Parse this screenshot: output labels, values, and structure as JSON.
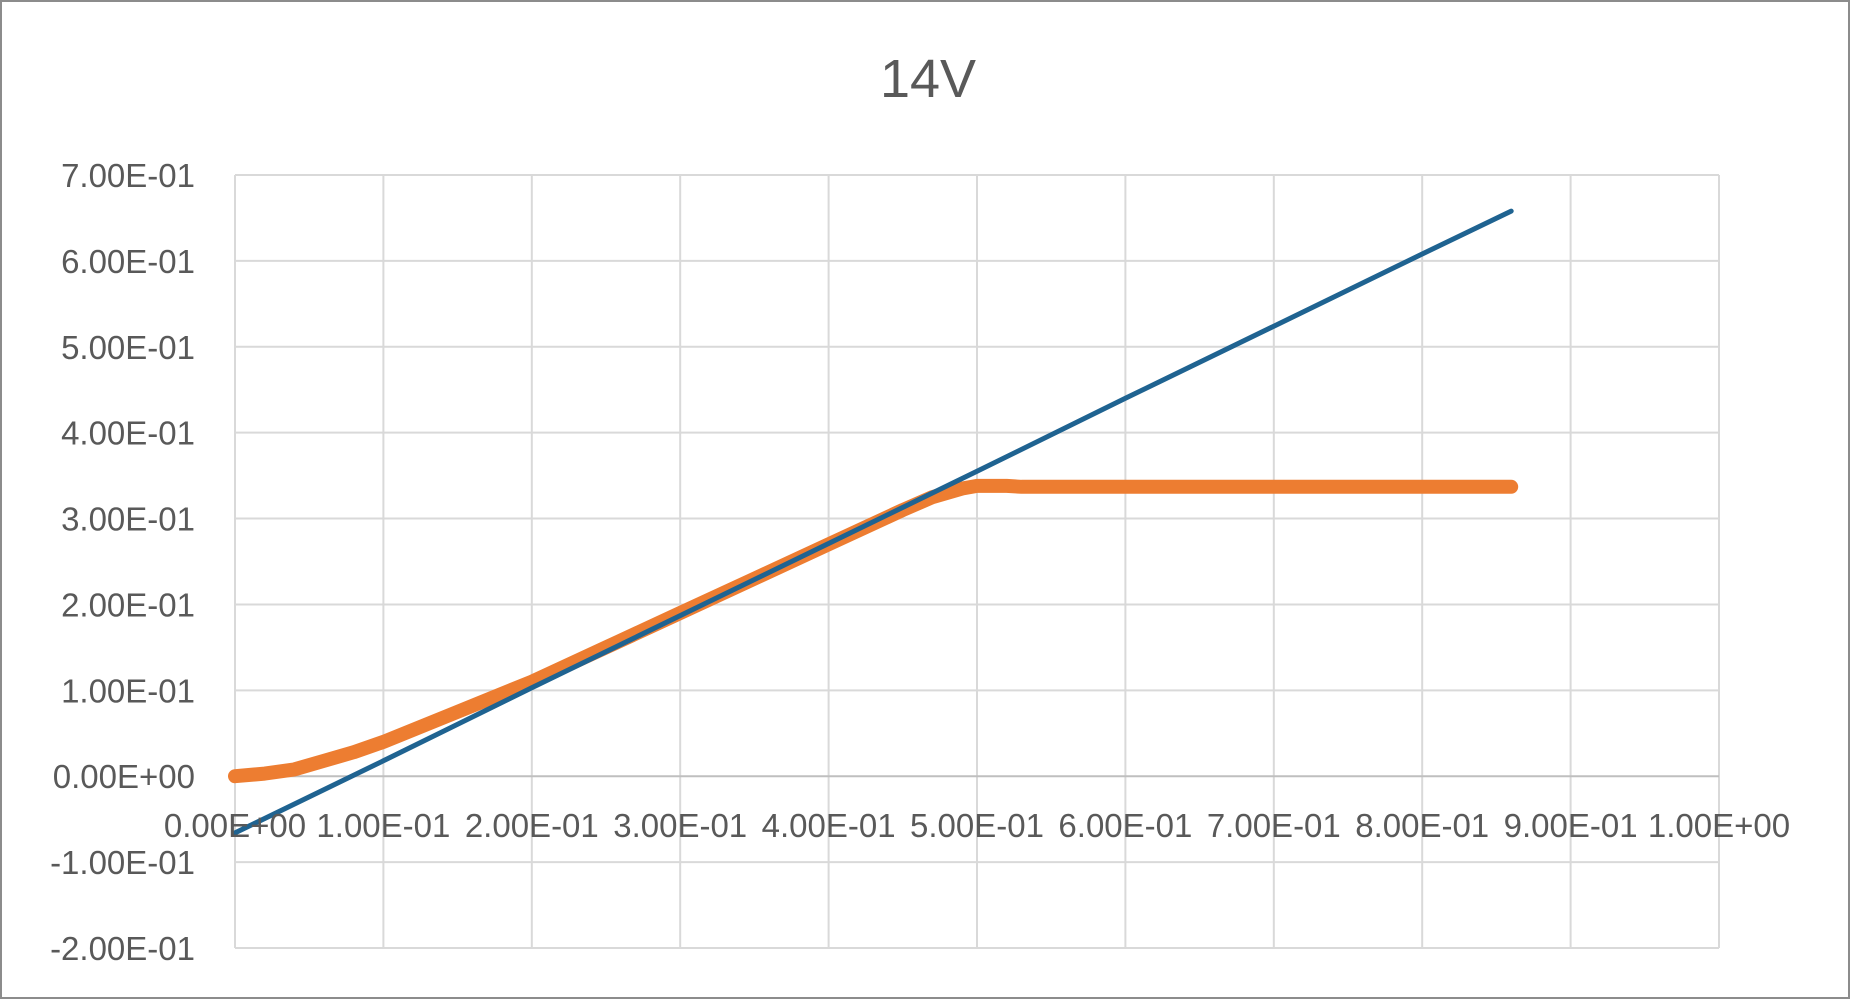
{
  "chart_data": {
    "type": "line",
    "title": "14V",
    "xlabel": "",
    "ylabel": "",
    "xlim": [
      0,
      1.0
    ],
    "ylim": [
      -0.2,
      0.7
    ],
    "x_ticks": [
      0,
      0.1,
      0.2,
      0.3,
      0.4,
      0.5,
      0.6,
      0.7,
      0.8,
      0.9,
      1.0
    ],
    "x_tick_labels": [
      "0.00E+00",
      "1.00E-01",
      "2.00E-01",
      "3.00E-01",
      "4.00E-01",
      "5.00E-01",
      "6.00E-01",
      "7.00E-01",
      "8.00E-01",
      "9.00E-01",
      "1.00E+00"
    ],
    "y_ticks": [
      0.7,
      0.6,
      0.5,
      0.4,
      0.3,
      0.2,
      0.1,
      0.0,
      -0.1,
      -0.2
    ],
    "y_tick_labels": [
      "7.00E-01",
      "6.00E-01",
      "5.00E-01",
      "4.00E-01",
      "3.00E-01",
      "2.00E-01",
      "1.00E-01",
      "0.00E+00",
      "-1.00E-01",
      "-2.00E-01"
    ],
    "grid": true,
    "legend": "none",
    "series": [
      {
        "color": "#1f6391",
        "x": [
          0,
          0.1,
          0.2,
          0.3,
          0.4,
          0.5,
          0.6,
          0.7,
          0.8,
          0.86
        ],
        "y": [
          -0.066,
          0.018,
          0.103,
          0.187,
          0.271,
          0.355,
          0.44,
          0.524,
          0.608,
          0.658
        ]
      },
      {
        "color": "#ed7d31",
        "x": [
          0,
          0.02,
          0.04,
          0.06,
          0.08,
          0.1,
          0.15,
          0.2,
          0.25,
          0.3,
          0.35,
          0.4,
          0.45,
          0.47,
          0.49,
          0.5,
          0.52,
          0.53,
          0.6,
          0.7,
          0.8,
          0.86
        ],
        "y": [
          0,
          0.003,
          0.008,
          0.018,
          0.028,
          0.04,
          0.075,
          0.11,
          0.15,
          0.19,
          0.23,
          0.27,
          0.31,
          0.325,
          0.335,
          0.338,
          0.338,
          0.337,
          0.337,
          0.337,
          0.337,
          0.337
        ]
      }
    ]
  }
}
